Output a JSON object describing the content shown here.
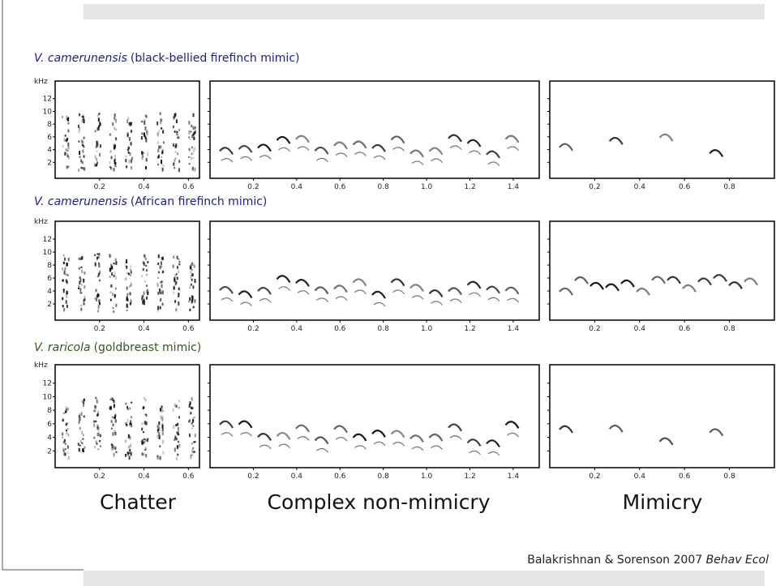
{
  "rows": [
    {
      "species": "V. camerunensis",
      "description": "(black-bellied firefinch mimic)"
    },
    {
      "species": "V. camerunensis",
      "description": "(African firefinch mimic)"
    },
    {
      "species": "V. raricola",
      "description": "(goldbreast mimic)"
    }
  ],
  "y_axis": {
    "unit": "kHz",
    "ticks": [
      "12",
      "10",
      "8",
      "6",
      "4",
      "2"
    ]
  },
  "panels": [
    {
      "label": "Chatter",
      "x_ticks": [
        "0.2",
        "0.4",
        "0.6"
      ]
    },
    {
      "label": "Complex non-mimicry",
      "x_ticks": [
        "0.2",
        "0.4",
        "0.6",
        "0.8",
        "1.0",
        "1.2",
        "1.4"
      ]
    },
    {
      "label": "Mimicry",
      "x_ticks": [
        "0.2",
        "0.4",
        "0.6",
        "0.8"
      ]
    }
  ],
  "citation": {
    "authors": "Balakrishnan & Sorenson 2007",
    "journal": "Behav Ecol"
  }
}
